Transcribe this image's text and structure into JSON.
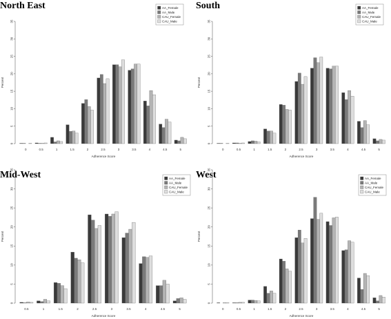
{
  "colors": {
    "AA_Female": "#3a3a3a",
    "AA_Male": "#7a7a7a",
    "CAU_Female": "#b4b4b4",
    "CAU_Male": "#dedede",
    "outline": "#555555"
  },
  "chart_data": [
    {
      "type": "bar",
      "title": "North East",
      "xlabel": "Adherence Score",
      "ylabel": "Percent",
      "ylim": [
        0,
        35
      ],
      "yticks": [
        0,
        5,
        10,
        15,
        20,
        25,
        30,
        35
      ],
      "legend_position": "top-right",
      "categories": [
        "0",
        "0.5",
        "1",
        "1.5",
        "2",
        "2.5",
        "3",
        "3.5",
        "4",
        "4.5",
        "5"
      ],
      "series": [
        {
          "name": "AA_Female",
          "values": [
            0.1,
            0.2,
            1.8,
            5.4,
            11.5,
            18.8,
            22.6,
            21.0,
            12.2,
            5.6,
            1.0
          ]
        },
        {
          "name": "AA_Male",
          "values": [
            0.1,
            0.1,
            0.5,
            3.5,
            12.6,
            19.8,
            22.6,
            21.4,
            10.8,
            4.6,
            0.8
          ]
        },
        {
          "name": "CAU_Female",
          "values": [
            0.0,
            0.1,
            0.8,
            3.6,
            10.6,
            17.2,
            22.0,
            22.8,
            15.2,
            7.0,
            1.8
          ]
        },
        {
          "name": "CAU_Male",
          "values": [
            0.1,
            0.2,
            0.6,
            3.0,
            9.6,
            18.6,
            24.0,
            22.8,
            14.0,
            6.2,
            1.4
          ]
        }
      ]
    },
    {
      "type": "bar",
      "title": "South",
      "xlabel": "Adherence Score",
      "ylabel": "Percent",
      "ylim": [
        0,
        35
      ],
      "yticks": [
        0,
        5,
        10,
        15,
        20,
        25,
        30,
        35
      ],
      "legend_position": "top-right",
      "categories": [
        "0",
        "0.5",
        "1",
        "1.5",
        "2",
        "2.5",
        "3",
        "3.5",
        "4",
        "4.5",
        "5"
      ],
      "series": [
        {
          "name": "AA_Female",
          "values": [
            0.1,
            0.2,
            0.6,
            4.2,
            11.2,
            17.8,
            21.6,
            21.6,
            14.6,
            6.4,
            1.4
          ]
        },
        {
          "name": "AA_Male",
          "values": [
            0.1,
            0.2,
            0.8,
            3.6,
            11.0,
            20.2,
            24.6,
            21.4,
            12.6,
            4.6,
            0.8
          ]
        },
        {
          "name": "CAU_Female",
          "values": [
            0.0,
            0.1,
            0.7,
            3.6,
            9.8,
            17.0,
            23.2,
            22.2,
            15.2,
            6.6,
            1.2
          ]
        },
        {
          "name": "CAU_Male",
          "values": [
            0.1,
            0.2,
            0.5,
            3.0,
            9.6,
            19.2,
            24.8,
            22.2,
            13.6,
            5.4,
            1.0
          ]
        }
      ]
    },
    {
      "type": "bar",
      "title": "Mid-West",
      "xlabel": "Adherence Score",
      "ylabel": "Percent",
      "ylim": [
        0,
        35
      ],
      "yticks": [
        0,
        5,
        10,
        15,
        20,
        25,
        30,
        35
      ],
      "legend_position": "top-right",
      "categories": [
        "0.5",
        "1",
        "1.5",
        "2",
        "2.5",
        "3",
        "3.5",
        "4",
        "4.5",
        "5"
      ],
      "series": [
        {
          "name": "AA_Female",
          "values": [
            0.2,
            0.6,
            5.4,
            13.4,
            23.2,
            23.4,
            17.2,
            10.4,
            4.6,
            0.6
          ]
        },
        {
          "name": "AA_Male",
          "values": [
            0.1,
            0.4,
            5.2,
            11.8,
            21.8,
            22.8,
            18.4,
            12.2,
            4.6,
            1.2
          ]
        },
        {
          "name": "CAU_Female",
          "values": [
            0.3,
            1.0,
            4.6,
            11.4,
            19.6,
            23.4,
            19.4,
            12.0,
            6.0,
            1.4
          ]
        },
        {
          "name": "CAU_Male",
          "values": [
            0.2,
            0.6,
            3.8,
            10.6,
            20.4,
            24.0,
            21.2,
            12.4,
            5.0,
            1.0
          ]
        }
      ]
    },
    {
      "type": "bar",
      "title": "West",
      "xlabel": "Adherence Score",
      "ylabel": "Percent",
      "ylim": [
        0,
        35
      ],
      "yticks": [
        0,
        5,
        10,
        15,
        20,
        25,
        30,
        35
      ],
      "legend_position": "top-right",
      "categories": [
        "0",
        "0.5",
        "1",
        "1.5",
        "2",
        "2.5",
        "3",
        "3.5",
        "4",
        "4.5",
        "5"
      ],
      "series": [
        {
          "name": "AA_Female",
          "values": [
            0.1,
            0.1,
            0.8,
            4.4,
            11.6,
            17.2,
            22.2,
            21.4,
            13.8,
            6.6,
            1.4
          ]
        },
        {
          "name": "AA_Male",
          "values": [
            0.0,
            0.1,
            0.8,
            2.6,
            11.0,
            19.2,
            27.8,
            20.4,
            14.0,
            3.6,
            0.6
          ]
        },
        {
          "name": "CAU_Female",
          "values": [
            0.1,
            0.2,
            0.7,
            3.2,
            9.0,
            15.8,
            22.0,
            22.4,
            16.4,
            7.8,
            2.0
          ]
        },
        {
          "name": "CAU_Male",
          "values": [
            0.1,
            0.2,
            0.6,
            2.6,
            8.4,
            17.0,
            23.6,
            22.6,
            16.0,
            7.2,
            1.6
          ]
        }
      ]
    }
  ]
}
